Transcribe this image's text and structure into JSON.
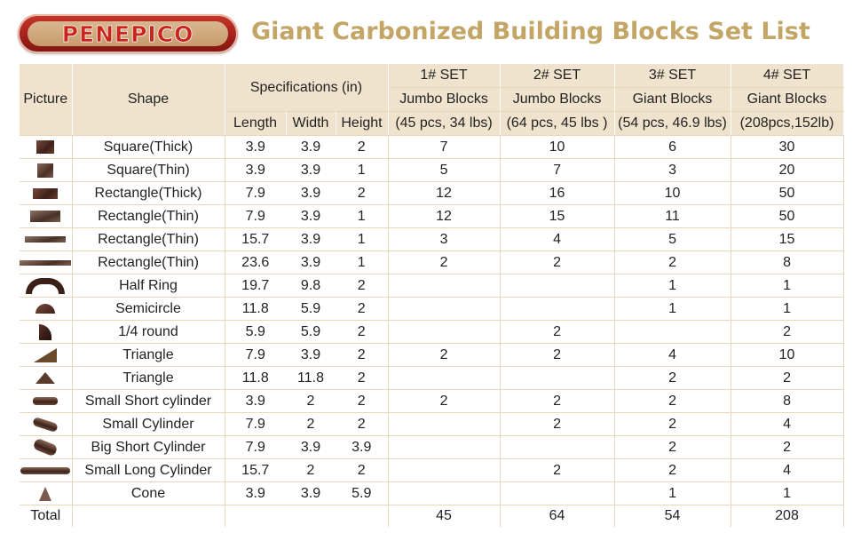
{
  "brand": {
    "logo_text": "PENEPICO"
  },
  "title": "Giant Carbonized Building Blocks Set List",
  "colors": {
    "title": "#c3a565",
    "header_bg": "#f0e3ce",
    "logo_red": "#c8261c"
  },
  "headers": {
    "picture": "Picture",
    "shape": "Shape",
    "specifications": "Specifications (in)",
    "length": "Length",
    "width": "Width",
    "height": "Height",
    "sets": [
      {
        "name": "1# SET",
        "type": "Jumbo Blocks",
        "detail": "(45 pcs, 34 lbs)"
      },
      {
        "name": "2# SET",
        "type": "Jumbo Blocks",
        "detail": "(64 pcs, 45 lbs )"
      },
      {
        "name": "3# SET",
        "type": "Giant Blocks",
        "detail": "(54 pcs, 46.9 lbs)"
      },
      {
        "name": "4# SET",
        "type": "Giant Blocks",
        "detail": "(208pcs,152lb)"
      }
    ]
  },
  "rows": [
    {
      "icon": "square-thick-block-icon",
      "shape": "Square(Thick)",
      "length": "3.9",
      "width": "3.9",
      "height": "2",
      "s1": "7",
      "s2": "10",
      "s3": "6",
      "s4": "30"
    },
    {
      "icon": "square-thin-block-icon",
      "shape": "Square(Thin)",
      "length": "3.9",
      "width": "3.9",
      "height": "1",
      "s1": "5",
      "s2": "7",
      "s3": "3",
      "s4": "20"
    },
    {
      "icon": "rectangle-thick-block-icon",
      "shape": "Rectangle(Thick)",
      "length": "7.9",
      "width": "3.9",
      "height": "2",
      "s1": "12",
      "s2": "16",
      "s3": "10",
      "s4": "50"
    },
    {
      "icon": "rectangle-thin-block-icon",
      "shape": "Rectangle(Thin)",
      "length": "7.9",
      "width": "3.9",
      "height": "1",
      "s1": "12",
      "s2": "15",
      "s3": "11",
      "s4": "50"
    },
    {
      "icon": "rectangle-thin-long-block-icon",
      "shape": "Rectangle(Thin)",
      "length": "15.7",
      "width": "3.9",
      "height": "1",
      "s1": "3",
      "s2": "4",
      "s3": "5",
      "s4": "15"
    },
    {
      "icon": "rectangle-thin-extra-long-block-icon",
      "shape": "Rectangle(Thin)",
      "length": "23.6",
      "width": "3.9",
      "height": "1",
      "s1": "2",
      "s2": "2",
      "s3": "2",
      "s4": "8"
    },
    {
      "icon": "half-ring-block-icon",
      "shape": "Half Ring",
      "length": "19.7",
      "width": "9.8",
      "height": "2",
      "s1": "",
      "s2": "",
      "s3": "1",
      "s4": "1"
    },
    {
      "icon": "semicircle-block-icon",
      "shape": "Semicircle",
      "length": "11.8",
      "width": "5.9",
      "height": "2",
      "s1": "",
      "s2": "",
      "s3": "1",
      "s4": "1"
    },
    {
      "icon": "quarter-round-block-icon",
      "shape": "1/4 round",
      "length": "5.9",
      "width": "5.9",
      "height": "2",
      "s1": "",
      "s2": "2",
      "s3": "",
      "s4": "2"
    },
    {
      "icon": "triangle-small-block-icon",
      "shape": "Triangle",
      "length": "7.9",
      "width": "3.9",
      "height": "2",
      "s1": "2",
      "s2": "2",
      "s3": "4",
      "s4": "10"
    },
    {
      "icon": "triangle-large-block-icon",
      "shape": "Triangle",
      "length": "11.8",
      "width": "11.8",
      "height": "2",
      "s1": "",
      "s2": "",
      "s3": "2",
      "s4": "2"
    },
    {
      "icon": "small-short-cylinder-block-icon",
      "shape": "Small Short cylinder",
      "length": "3.9",
      "width": "2",
      "height": "2",
      "s1": "2",
      "s2": "2",
      "s3": "2",
      "s4": "8"
    },
    {
      "icon": "small-cylinder-block-icon",
      "shape": "Small  Cylinder",
      "length": "7.9",
      "width": "2",
      "height": "2",
      "s1": "",
      "s2": "2",
      "s3": "2",
      "s4": "4"
    },
    {
      "icon": "big-short-cylinder-block-icon",
      "shape": "Big Short Cylinder",
      "length": "7.9",
      "width": "3.9",
      "height": "3.9",
      "s1": "",
      "s2": "",
      "s3": "2",
      "s4": "2"
    },
    {
      "icon": "small-long-cylinder-block-icon",
      "shape": "Small Long Cylinder",
      "length": "15.7",
      "width": "2",
      "height": "2",
      "s1": "",
      "s2": "2",
      "s3": "2",
      "s4": "4"
    },
    {
      "icon": "cone-block-icon",
      "shape": "Cone",
      "length": "3.9",
      "width": "3.9",
      "height": "5.9",
      "s1": "",
      "s2": "",
      "s3": "1",
      "s4": "1"
    }
  ],
  "total": {
    "label": "Total",
    "s1": "45",
    "s2": "64",
    "s3": "54",
    "s4": "208"
  }
}
